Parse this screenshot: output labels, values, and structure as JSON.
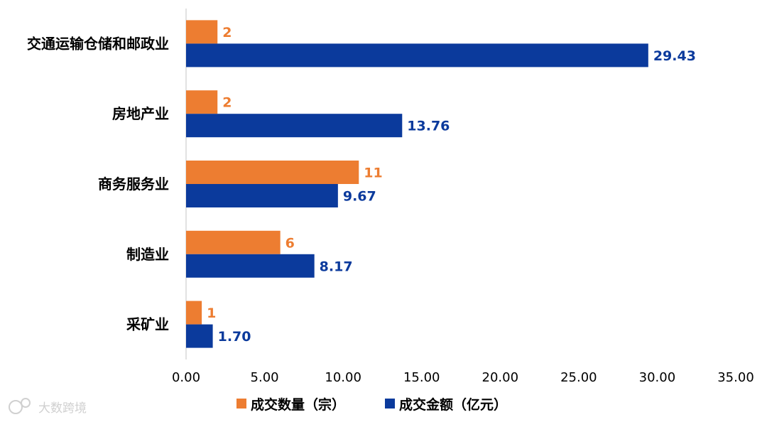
{
  "chart_data": {
    "type": "bar",
    "orientation": "horizontal",
    "categories": [
      "交通运输仓储和邮政业",
      "房地产业",
      "商务服务业",
      "制造业",
      "采矿业"
    ],
    "series": [
      {
        "name": "成交数量（宗）",
        "color": "#ED7D31",
        "values": [
          2,
          2,
          11,
          6,
          1
        ],
        "labels": [
          "2",
          "2",
          "11",
          "6",
          "1"
        ]
      },
      {
        "name": "成交金额（亿元）",
        "color": "#0B3A9C",
        "values": [
          29.43,
          13.76,
          9.67,
          8.17,
          1.7
        ],
        "labels": [
          "29.43",
          "13.76",
          "9.67",
          "8.17",
          "1.70"
        ]
      }
    ],
    "xlim": [
      0,
      35
    ],
    "xticks": [
      "0.00",
      "5.00",
      "10.00",
      "15.00",
      "20.00",
      "25.00",
      "30.00",
      "35.00"
    ],
    "grid": false,
    "legend_position": "bottom"
  },
  "watermark": {
    "text": "大数跨境"
  }
}
